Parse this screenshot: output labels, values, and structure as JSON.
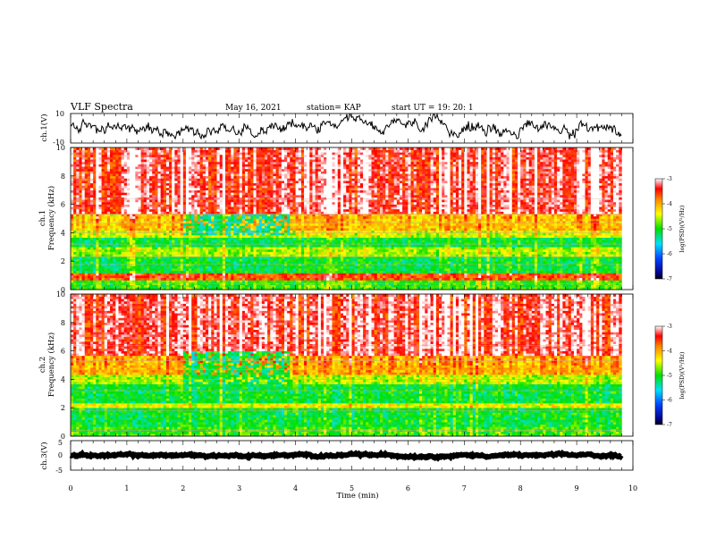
{
  "header": {
    "title": "VLF Spectra",
    "date": "May 16, 2021",
    "station": "station= KAP",
    "start": "start  UT =   19: 20: 1"
  },
  "chart_data": [
    {
      "type": "line",
      "name": "ch1-waveform",
      "ylabel": "ch.1(V)",
      "ylim": [
        -10,
        10
      ],
      "yticks": [
        "10",
        "-10"
      ],
      "xlim": [
        0,
        10
      ],
      "x_extent": [
        0,
        9.8
      ],
      "baseline": 0.5,
      "amplitude": 4.5,
      "line_color": "#000000"
    },
    {
      "type": "heatmap",
      "name": "ch1-spectrogram",
      "ylabel": "ch.1\nFrequency (kHz)",
      "ylim": [
        0,
        10
      ],
      "yticks": [
        "0",
        "2",
        "4",
        "6",
        "8",
        "10"
      ],
      "xlim": [
        0,
        10
      ],
      "x_extent": [
        0,
        9.8
      ],
      "colorbar": {
        "label": "log(PSD)(V²/Hz)",
        "range": [
          -7,
          -3
        ],
        "ticks": [
          "-3",
          "-4",
          "-5",
          "-6",
          "-7"
        ]
      },
      "bands": [
        {
          "f": [
            0,
            0.7
          ],
          "level": -4.9
        },
        {
          "f": [
            0.7,
            1.2
          ],
          "level": -3.6
        },
        {
          "f": [
            1.2,
            2.4
          ],
          "level": -5.1
        },
        {
          "f": [
            2.4,
            3.0
          ],
          "level": -4.6
        },
        {
          "f": [
            3.0,
            3.6
          ],
          "level": -5.1
        },
        {
          "f": [
            3.6,
            4.2
          ],
          "level": -4.5
        },
        {
          "f": [
            4.2,
            5.4
          ],
          "level": -4.1
        },
        {
          "f": [
            5.4,
            10.0
          ],
          "level": -3.3
        }
      ],
      "quiet_intervals": [
        {
          "t": [
            2.0,
            3.9
          ],
          "f": [
            3.8,
            5.4
          ],
          "level": -5.3
        }
      ]
    },
    {
      "type": "heatmap",
      "name": "ch2-spectrogram",
      "ylabel": "ch.2\nFrequency (kHz)",
      "ylim": [
        0,
        10
      ],
      "yticks": [
        "0",
        "2",
        "4",
        "6",
        "8",
        "10"
      ],
      "xlim": [
        0,
        10
      ],
      "x_extent": [
        0,
        9.8
      ],
      "colorbar": {
        "label": "log(PSD)(V²/Hz)",
        "range": [
          -7,
          -3
        ],
        "ticks": [
          "-3",
          "-4",
          "-5",
          "-6",
          "-7"
        ]
      },
      "bands": [
        {
          "f": [
            0,
            0.6
          ],
          "level": -4.9
        },
        {
          "f": [
            0.6,
            2.0
          ],
          "level": -5.1
        },
        {
          "f": [
            2.0,
            2.4
          ],
          "level": -4.4
        },
        {
          "f": [
            2.4,
            3.6
          ],
          "level": -5.1
        },
        {
          "f": [
            3.6,
            4.4
          ],
          "level": -4.6
        },
        {
          "f": [
            4.4,
            5.6
          ],
          "level": -4.0
        },
        {
          "f": [
            5.6,
            10.0
          ],
          "level": -3.3
        }
      ],
      "quiet_intervals": [
        {
          "t": [
            2.0,
            3.9
          ],
          "f": [
            3.4,
            6.0
          ],
          "level": -5.2
        }
      ]
    },
    {
      "type": "line",
      "name": "ch3-waveform",
      "ylabel": "ch.3(V)",
      "ylim": [
        -5,
        5
      ],
      "yticks": [
        "5",
        "0",
        "-5"
      ],
      "xlim": [
        0,
        10
      ],
      "x_extent": [
        0,
        9.8
      ],
      "baseline": 0,
      "amplitude": 0.4,
      "line_color": "#000000"
    }
  ],
  "xaxis": {
    "label": "Time (min)",
    "ticks": [
      "0",
      "1",
      "2",
      "3",
      "4",
      "5",
      "6",
      "7",
      "8",
      "9",
      "10"
    ]
  }
}
